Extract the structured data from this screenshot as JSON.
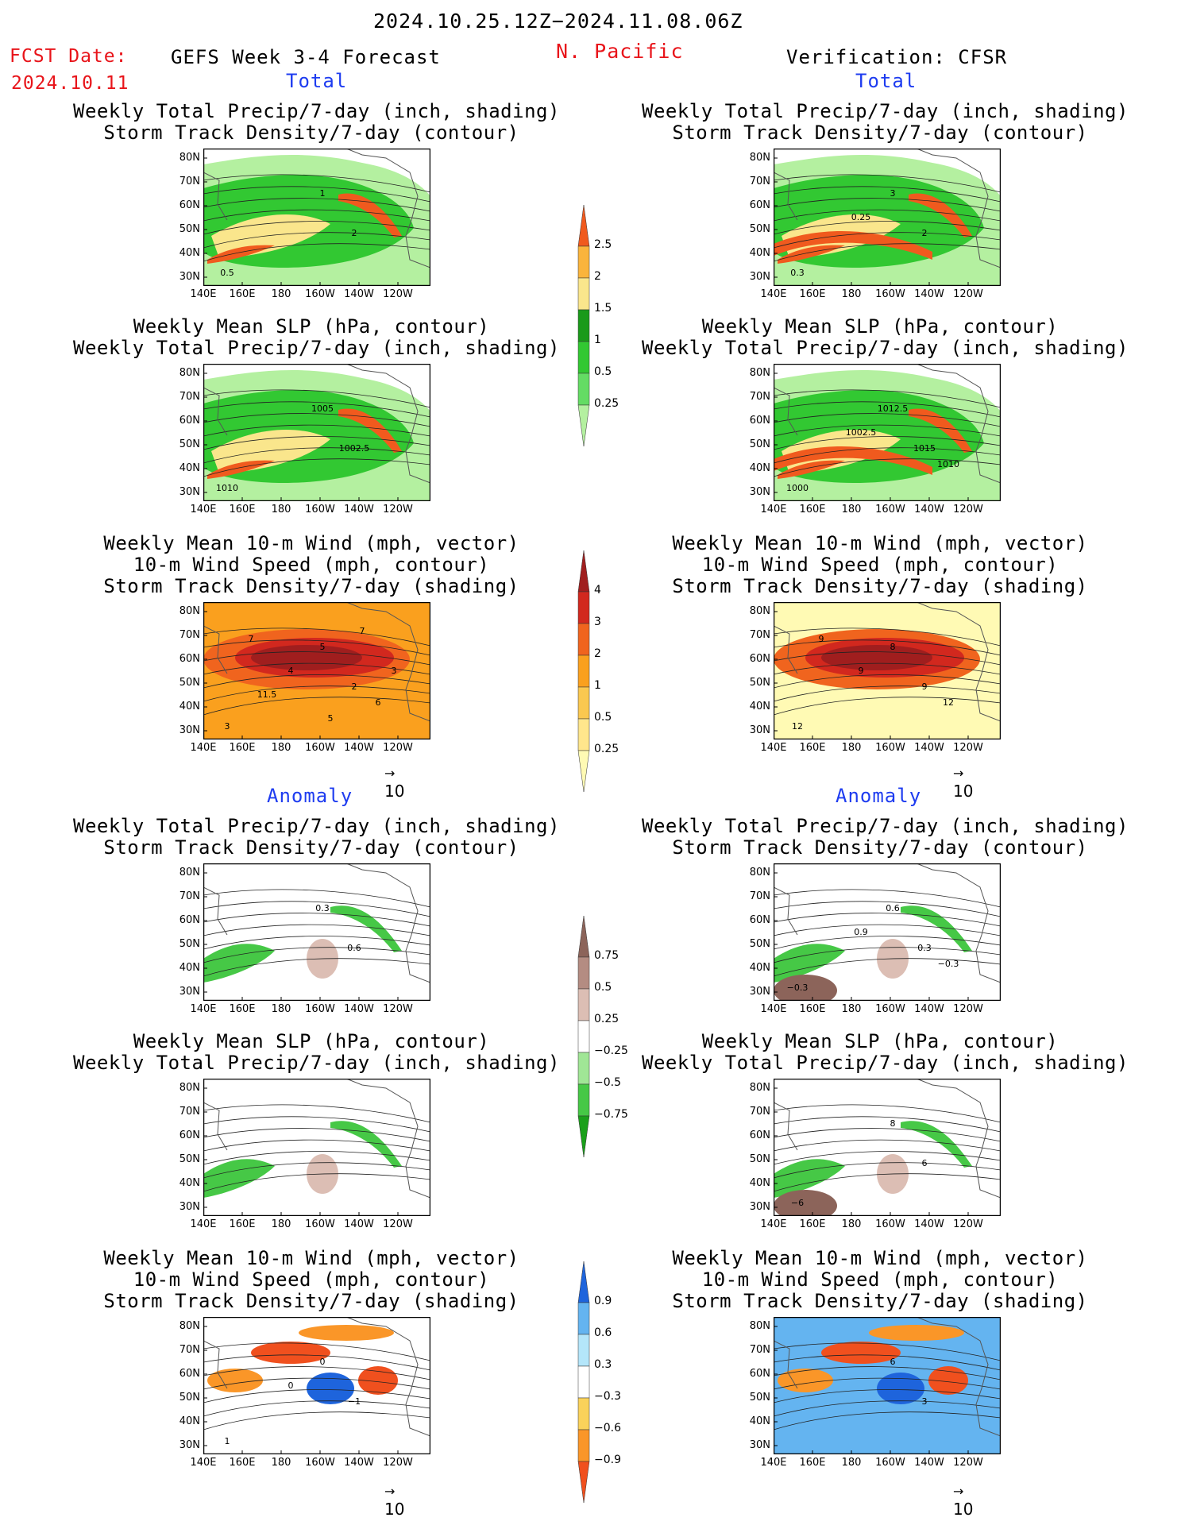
{
  "header": {
    "period": "2024.10.25.12Z−2024.11.08.06Z",
    "fcst_label": "FCST Date:",
    "fcst_date": "2024.10.11",
    "model": "GEFS Week 3-4 Forecast",
    "region": "N. Pacific",
    "verification": "Verification: CFSR"
  },
  "sections": {
    "left_total": "Total",
    "right_total": "Total",
    "left_anomaly": "Anomaly",
    "right_anomaly": "Anomaly"
  },
  "titles": {
    "precip_storm": [
      "Weekly Total Precip/7-day (inch, shading)",
      "Storm Track Density/7-day (contour)"
    ],
    "slp_precip": [
      "Weekly Mean SLP (hPa, contour)",
      "Weekly Total Precip/7-day (inch, shading)"
    ],
    "wind_storm": [
      "Weekly Mean 10-m Wind (mph, vector)",
      "10-m Wind Speed (mph, contour)",
      "Storm Track Density/7-day (shading)"
    ]
  },
  "axes": {
    "lat_labels": [
      "80N",
      "70N",
      "60N",
      "50N",
      "40N",
      "30N"
    ],
    "lon_labels": [
      "140E",
      "160E",
      "180",
      "160W",
      "140W",
      "120W"
    ]
  },
  "vector_ref": "10",
  "colorbars": {
    "precip_total": {
      "levels": [
        "0.25",
        "0.5",
        "1",
        "1.5",
        "2",
        "2.5"
      ],
      "colors": [
        "#b4f0a0",
        "#64dc64",
        "#32c832",
        "#1a9a1a",
        "#fae68c",
        "#fab43c",
        "#f05a1e"
      ]
    },
    "storm_total": {
      "levels": [
        "0.25",
        "0.5",
        "1",
        "2",
        "3",
        "4"
      ],
      "colors": [
        "#fffab4",
        "#ffe68c",
        "#fac850",
        "#faa01e",
        "#f0641e",
        "#d2281e",
        "#a01e1e"
      ]
    },
    "precip_anom": {
      "levels": [
        "0.75",
        "0.5",
        "0.25",
        "−0.25",
        "−0.5",
        "−0.75"
      ],
      "colors": [
        "#1aa01a",
        "#46c846",
        "#a0e696",
        "#ffffff",
        "#dcbeb4",
        "#b48c82",
        "#8c645a"
      ]
    },
    "storm_anom": {
      "levels": [
        "0.9",
        "0.6",
        "0.3",
        "−0.3",
        "−0.6",
        "−0.9"
      ],
      "colors": [
        "#f0501e",
        "#fa9628",
        "#fad25a",
        "#ffffff",
        "#b4e6fa",
        "#64b4f0",
        "#1e64dc"
      ]
    }
  },
  "contour_labels": {
    "l1": [
      "1",
      "2",
      "0.5"
    ],
    "r1": [
      "3",
      "2",
      "0.3",
      "0.25"
    ],
    "l2": [
      "1005",
      "1002.5",
      "1010"
    ],
    "r2": [
      "1012.5",
      "1015",
      "1000",
      "1002.5",
      "1010"
    ],
    "l3": [
      "5",
      "2",
      "3",
      "4",
      "6",
      "7",
      "3",
      "11.5",
      "5",
      "7"
    ],
    "r3": [
      "8",
      "9",
      "12",
      "9",
      "12",
      "9"
    ],
    "l4": [
      "0.3",
      "0.6"
    ],
    "r4": [
      "0.6",
      "0.3",
      "−0.3",
      "0.9",
      "−0.3"
    ],
    "l5": [],
    "r5": [
      "8",
      "6",
      "−6"
    ],
    "l6": [
      "0",
      "−1",
      "1",
      "0"
    ],
    "r6": [
      "6",
      "3"
    ]
  }
}
